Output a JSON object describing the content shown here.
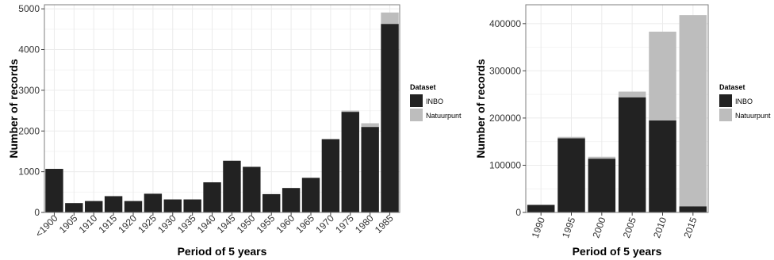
{
  "colors": {
    "INBO": "#222222",
    "Natuurpunt": "#bdbdbd",
    "panel": "#ffffff",
    "grid": "#ebebeb",
    "border": "#7f7f7f"
  },
  "chart_data": [
    {
      "type": "bar",
      "stacked": true,
      "xlabel": "Period of 5 years",
      "ylabel": "Number of records",
      "ylim": [
        0,
        5100
      ],
      "yticks": [
        0,
        1000,
        2000,
        3000,
        4000,
        5000
      ],
      "ytick_labels": [
        "0",
        "1000",
        "2000",
        "3000",
        "4000",
        "5000"
      ],
      "grid": true,
      "legend_position": "right",
      "legend_title": "Dataset",
      "categories": [
        "<1900",
        "1905",
        "1910",
        "1915",
        "1920",
        "1925",
        "1930",
        "1935",
        "1940",
        "1945",
        "1950",
        "1955",
        "1960",
        "1965",
        "1970",
        "1975",
        "1980",
        "1985"
      ],
      "series": [
        {
          "name": "INBO",
          "values": [
            1070,
            230,
            280,
            400,
            280,
            460,
            320,
            320,
            740,
            1270,
            1120,
            450,
            600,
            850,
            1800,
            2470,
            2100,
            4630
          ]
        },
        {
          "name": "Natuurpunt",
          "values": [
            0,
            0,
            0,
            0,
            0,
            0,
            0,
            0,
            0,
            0,
            0,
            0,
            0,
            0,
            0,
            30,
            90,
            280
          ]
        }
      ]
    },
    {
      "type": "bar",
      "stacked": true,
      "xlabel": "Period of 5 years",
      "ylabel": "Number of records",
      "ylim": [
        0,
        440000
      ],
      "yticks": [
        0,
        100000,
        200000,
        300000,
        400000
      ],
      "ytick_labels": [
        "0",
        "100000",
        "200000",
        "300000",
        "400000"
      ],
      "grid": true,
      "legend_position": "right",
      "legend_title": "Dataset",
      "categories": [
        "1990",
        "1995",
        "2000",
        "2005",
        "2010",
        "2015"
      ],
      "series": [
        {
          "name": "INBO",
          "values": [
            16000,
            157000,
            114000,
            244000,
            195000,
            13000
          ]
        },
        {
          "name": "Natuurpunt",
          "values": [
            0,
            3000,
            4000,
            12000,
            188000,
            405000
          ]
        }
      ]
    }
  ]
}
